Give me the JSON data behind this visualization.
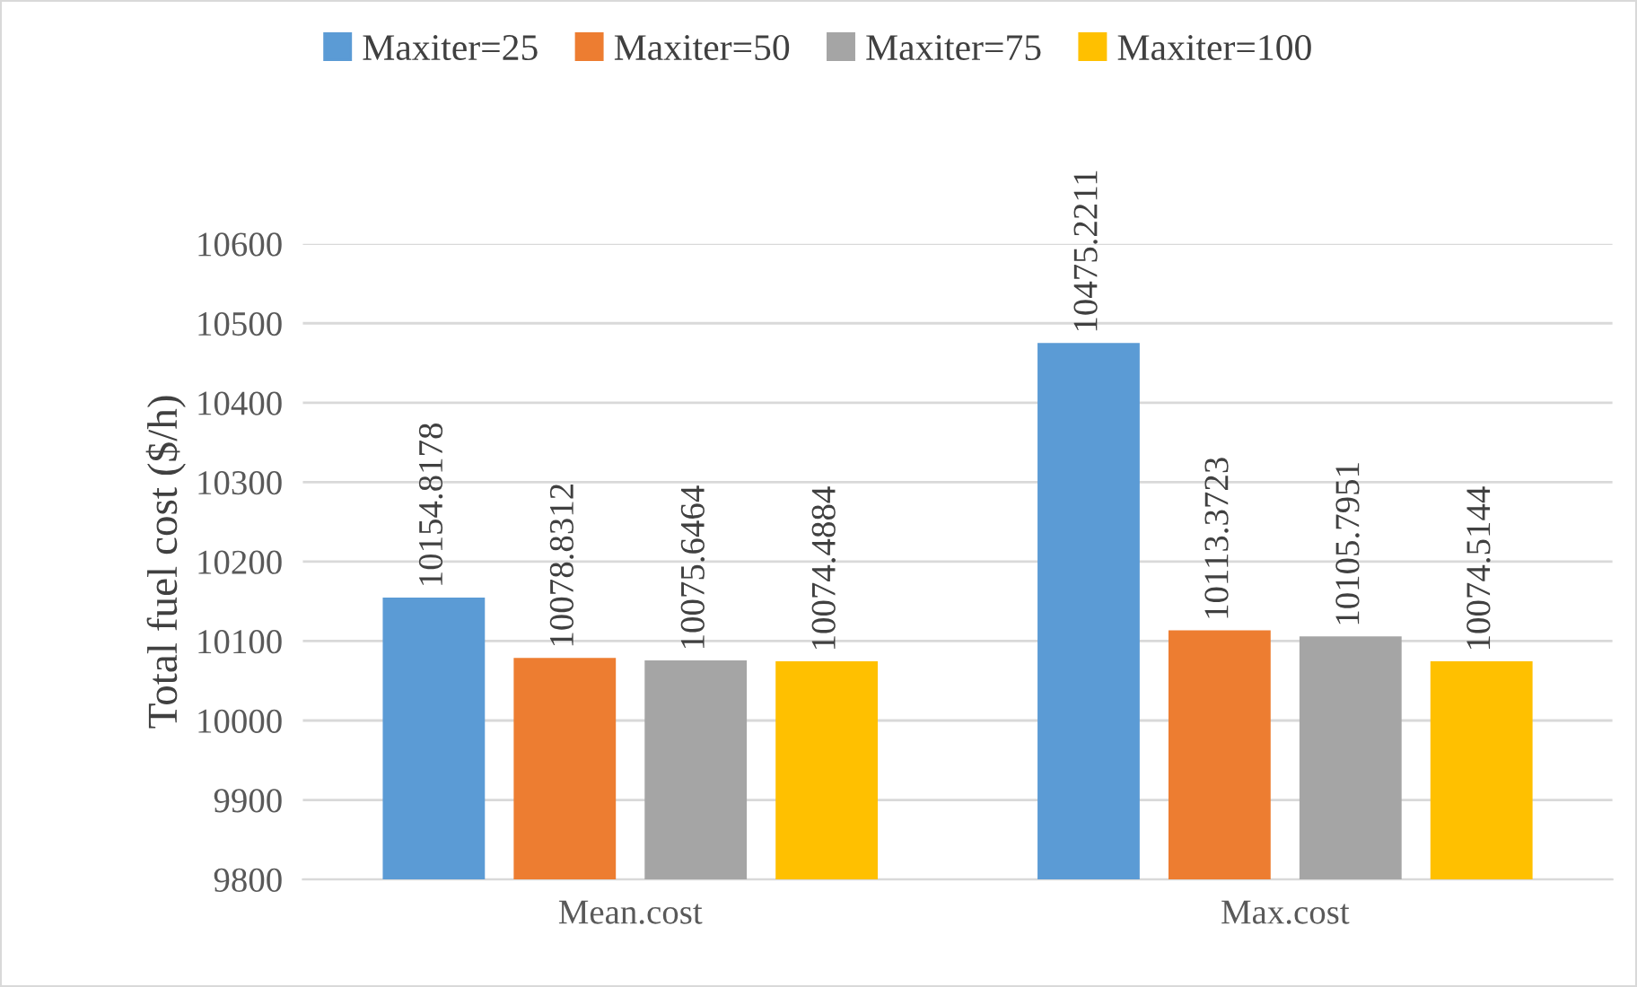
{
  "chart_data": {
    "type": "bar",
    "ylabel": "Total fuel cost ($/h)",
    "categories": [
      "Mean.cost",
      "Max.cost"
    ],
    "series": [
      {
        "name": "Maxiter=25",
        "color": "#5b9bd5",
        "values": [
          10154.8178,
          10475.2211
        ]
      },
      {
        "name": "Maxiter=50",
        "color": "#ed7d31",
        "values": [
          10078.8312,
          10113.3723
        ]
      },
      {
        "name": "Maxiter=75",
        "color": "#a5a5a5",
        "values": [
          10075.6464,
          10105.7951
        ]
      },
      {
        "name": "Maxiter=100",
        "color": "#ffc000",
        "values": [
          10074.4884,
          10074.5144
        ]
      }
    ],
    "ylim": [
      9800,
      10600
    ],
    "yticks": [
      9800,
      9900,
      10000,
      10100,
      10200,
      10300,
      10400,
      10500,
      10600
    ],
    "grid": "y",
    "legend": "top",
    "data_labels": true
  }
}
